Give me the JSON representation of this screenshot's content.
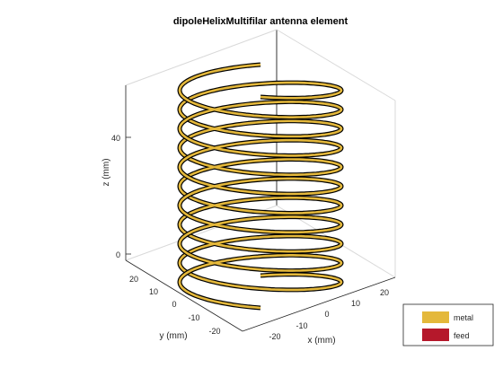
{
  "chart_data": {
    "type": "3d-helix",
    "title": "dipoleHelixMultifilar antenna element",
    "xlabel": "x (mm)",
    "ylabel": "y (mm)",
    "zlabel": "z (mm)",
    "x_ticks": [
      "-20",
      "-10",
      "0",
      "10",
      "20"
    ],
    "y_ticks": [
      "20",
      "10",
      "0",
      "-10",
      "-20"
    ],
    "z_ticks": [
      "40",
      "0"
    ],
    "legend": [
      {
        "label": "metal",
        "color": "#e4b83b"
      },
      {
        "label": "feed",
        "color": "#b5182b"
      }
    ],
    "strip_outline_color": "#000000",
    "box_edges": "visible",
    "grid": false,
    "legend_position": "bottom-right"
  }
}
